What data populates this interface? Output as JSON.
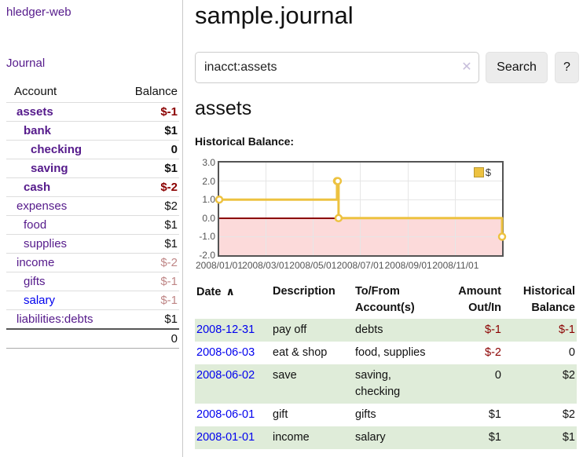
{
  "brand": "hledger-web",
  "nav": {
    "journal": "Journal"
  },
  "icons": {
    "clear": "✕",
    "sort_ascending": "∧"
  },
  "sidebar": {
    "headers": {
      "account": "Account",
      "balance": "Balance"
    },
    "accounts": [
      {
        "name": "assets",
        "balance": "$-1",
        "depth": 1,
        "name_style": "bold",
        "balance_style": "neg-strong"
      },
      {
        "name": "bank",
        "balance": "$1",
        "depth": 2,
        "name_style": "bold",
        "balance_style": "strong"
      },
      {
        "name": "checking",
        "balance": "0",
        "depth": 3,
        "name_style": "bold",
        "balance_style": "strong"
      },
      {
        "name": "saving",
        "balance": "$1",
        "depth": 3,
        "name_style": "bold",
        "balance_style": "strong"
      },
      {
        "name": "cash",
        "balance": "$-2",
        "depth": 2,
        "name_style": "bold",
        "balance_style": "neg-strong"
      },
      {
        "name": "expenses",
        "balance": "$2",
        "depth": 1,
        "name_style": "normal",
        "balance_style": "normal"
      },
      {
        "name": "food",
        "balance": "$1",
        "depth": 2,
        "name_style": "normal",
        "balance_style": "normal"
      },
      {
        "name": "supplies",
        "balance": "$1",
        "depth": 2,
        "name_style": "normal",
        "balance_style": "normal"
      },
      {
        "name": "income",
        "balance": "$-2",
        "depth": 1,
        "name_style": "normal",
        "balance_style": "neg-soft"
      },
      {
        "name": "gifts",
        "balance": "$-1",
        "depth": 2,
        "name_style": "normal",
        "balance_style": "neg-soft"
      },
      {
        "name": "salary",
        "balance": "$-1",
        "depth": 2,
        "name_style": "blue",
        "balance_style": "neg-soft"
      },
      {
        "name": "liabilities:debts",
        "balance": "$1",
        "depth": 1,
        "name_style": "normal",
        "balance_style": "normal"
      }
    ],
    "total": "0"
  },
  "main": {
    "title": "sample.journal",
    "search": {
      "value": "inacct:assets",
      "button": "Search",
      "help": "?"
    },
    "account_heading": "assets",
    "chart_label": "Historical Balance:"
  },
  "chart_data": {
    "type": "line",
    "steps": true,
    "title": "Historical Balance:",
    "series": [
      {
        "name": "$",
        "color": "#edc240",
        "points": [
          [
            "2008-01-01",
            1
          ],
          [
            "2008-06-01",
            2
          ],
          [
            "2008-06-02",
            2
          ],
          [
            "2008-06-03",
            0
          ],
          [
            "2008-12-31",
            -1
          ]
        ]
      }
    ],
    "xlim": [
      "2008-01-01",
      "2008-12-31"
    ],
    "ylim": [
      -2,
      3
    ],
    "x_ticks": [
      {
        "date": "2008-01-01",
        "label": "2008/01/01"
      },
      {
        "date": "2008-03-01",
        "label": "2008/03/01"
      },
      {
        "date": "2008-05-01",
        "label": "2008/05/01"
      },
      {
        "date": "2008-07-01",
        "label": "2008/07/01"
      },
      {
        "date": "2008-09-01",
        "label": "2008/09/01"
      },
      {
        "date": "2008-11-01",
        "label": "2008/11/01"
      }
    ],
    "y_ticks": [
      {
        "value": 3,
        "label": "3.0"
      },
      {
        "value": 2,
        "label": "2.0"
      },
      {
        "value": 1,
        "label": "1.0"
      },
      {
        "value": 0,
        "label": "0.0"
      },
      {
        "value": -1,
        "label": "-1.0"
      },
      {
        "value": -2,
        "label": "-2.0"
      }
    ],
    "legend": [
      {
        "label": "$",
        "color": "#edc240"
      }
    ],
    "legend_position": "top-right",
    "grid": true,
    "negative_region": {
      "below": 0,
      "fill": "#fcdada",
      "line_color": "#8b0000"
    }
  },
  "register": {
    "headers": {
      "date": "Date",
      "description": "Description",
      "accounts": "To/From Account(s)",
      "amount": "Amount Out/In",
      "balance": "Historical Balance"
    },
    "rows": [
      {
        "date": "2008-12-31",
        "description": "pay off",
        "accounts": "debts",
        "amount": "$-1",
        "amount_neg": true,
        "balance": "$-1",
        "balance_neg": true
      },
      {
        "date": "2008-06-03",
        "description": "eat & shop",
        "accounts": "food, supplies",
        "amount": "$-2",
        "amount_neg": true,
        "balance": "0",
        "balance_neg": false
      },
      {
        "date": "2008-06-02",
        "description": "save",
        "accounts": "saving, checking",
        "amount": "0",
        "amount_neg": false,
        "balance": "$2",
        "balance_neg": false
      },
      {
        "date": "2008-06-01",
        "description": "gift",
        "accounts": "gifts",
        "amount": "$1",
        "amount_neg": false,
        "balance": "$2",
        "balance_neg": false
      },
      {
        "date": "2008-01-01",
        "description": "income",
        "accounts": "salary",
        "amount": "$1",
        "amount_neg": false,
        "balance": "$1",
        "balance_neg": false
      }
    ]
  }
}
